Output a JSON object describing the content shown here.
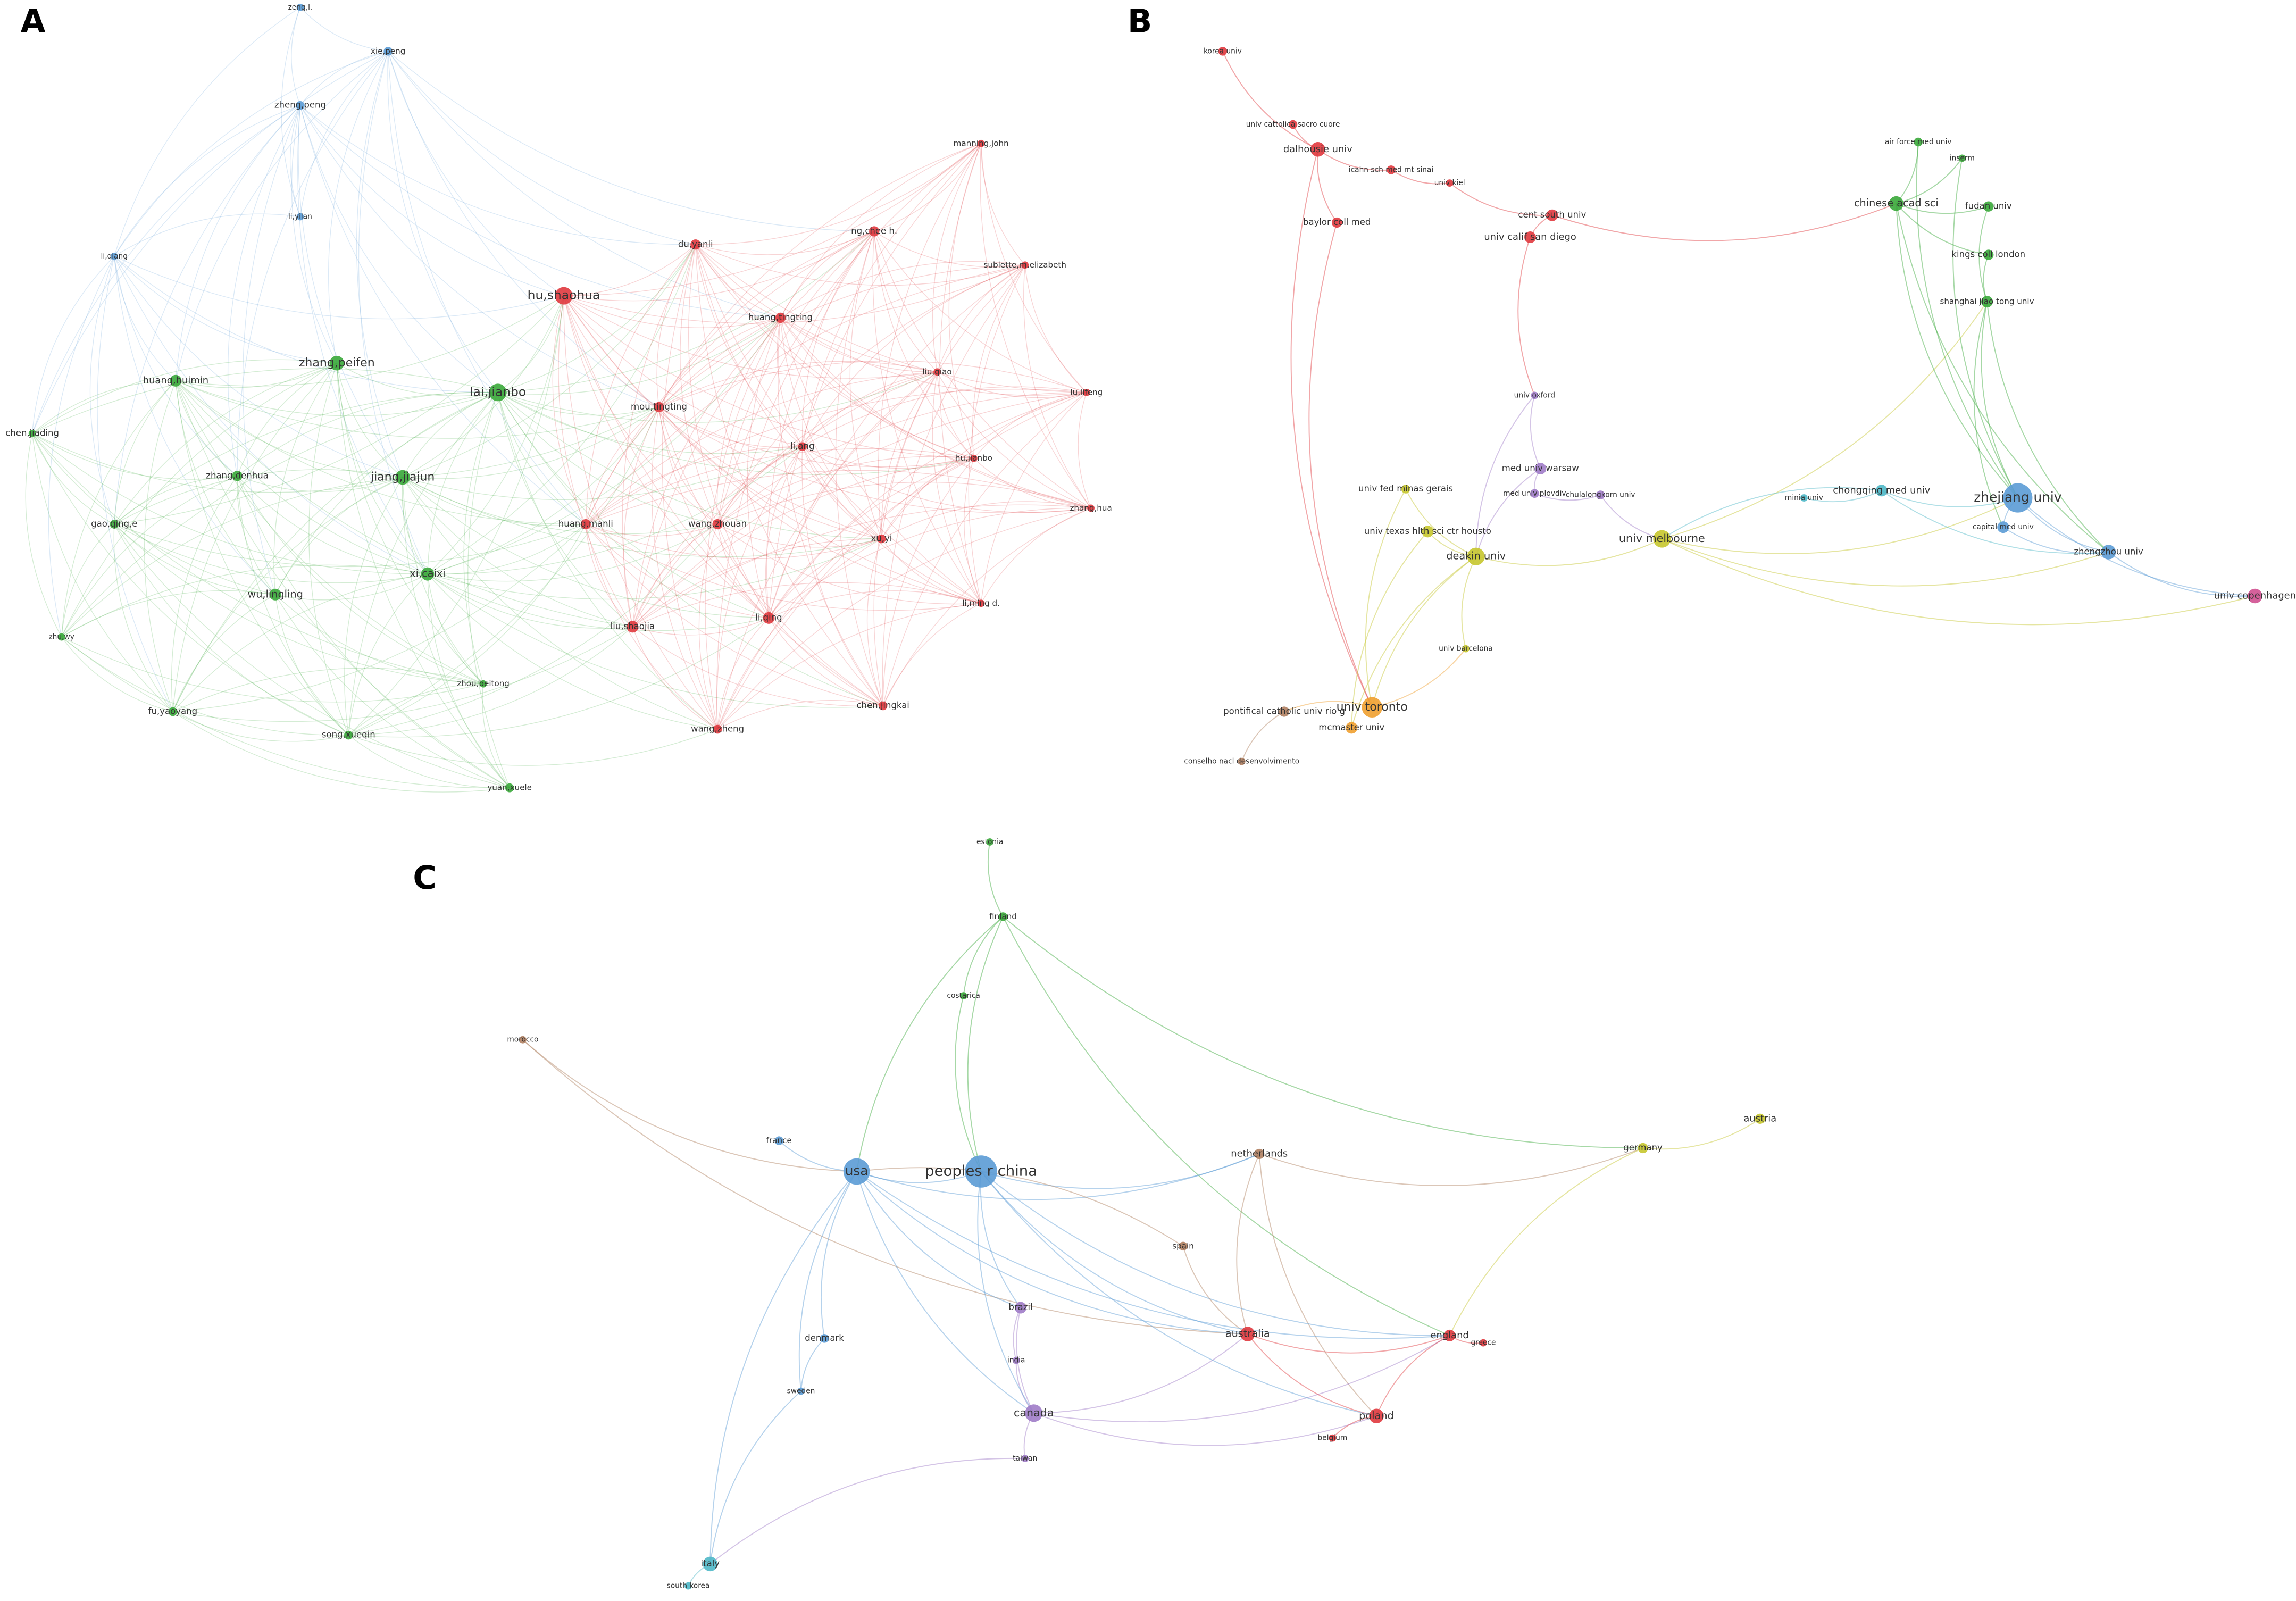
{
  "panels": [
    {
      "label": "A",
      "nodes": [
        "zeng,l.",
        "xie,peng",
        "zheng,peng",
        "li,yilan",
        "li,qiang",
        "huang,huimin",
        "zhang,peifen",
        "lai,jianbo",
        "chen,jiading",
        "zhang,denhua",
        "jiang,jiajun",
        "gao,qing,e",
        "wu,lingling",
        "xi,caixi",
        "zhu,wy",
        "zhou,beitong",
        "fu,yaoyang",
        "song,xueqin",
        "yuan,xuele",
        "hu,shaohua",
        "du,yanli",
        "ng,chee h.",
        "manning,john",
        "sublette,m.elizabeth",
        "huang,tingting",
        "liu,qiao",
        "lu,lifeng",
        "mou,tingting",
        "li,ang",
        "hu,jianbo",
        "zhang,hua",
        "huang,manli",
        "wang,zhouan",
        "xu,yi",
        "li,ming d.",
        "liu,shaojia",
        "li,qing",
        "chen,jingkai",
        "wang,zheng"
      ]
    },
    {
      "label": "B",
      "nodes": [
        "korea univ",
        "univ cattolica sacro cuore",
        "dalhousie univ",
        "icahn sch med mt sinai",
        "univ kiel",
        "baylor coll med",
        "cent south univ",
        "univ calif san diego",
        "air force med univ",
        "inserm",
        "chinese acad sci",
        "fudan univ",
        "kings coll london",
        "shanghai jiao tong univ",
        "univ oxford",
        "med univ warsaw",
        "med univ plovdiv",
        "chulalongkorn univ",
        "univ fed minas gerais",
        "univ texas hlth sci ctr housto",
        "deakin univ",
        "univ melbourne",
        "univ barcelona",
        "minia univ",
        "chongqing med univ",
        "zhejiang univ",
        "capital med univ",
        "zhengzhou univ",
        "univ toronto",
        "mcmaster univ",
        "pontifical catholic univ rio g",
        "conselho nacl desenvolvimento",
        "univ copenhagen"
      ]
    },
    {
      "label": "C",
      "nodes": [
        "estonia",
        "finland",
        "costarica",
        "morocco",
        "france",
        "usa",
        "peoples r china",
        "netherlands",
        "germany",
        "austria",
        "spain",
        "brazil",
        "india",
        "denmark",
        "australia",
        "england",
        "greece",
        "sweden",
        "canada",
        "poland",
        "belgium",
        "taiwan",
        "italy",
        "south korea"
      ]
    }
  ]
}
